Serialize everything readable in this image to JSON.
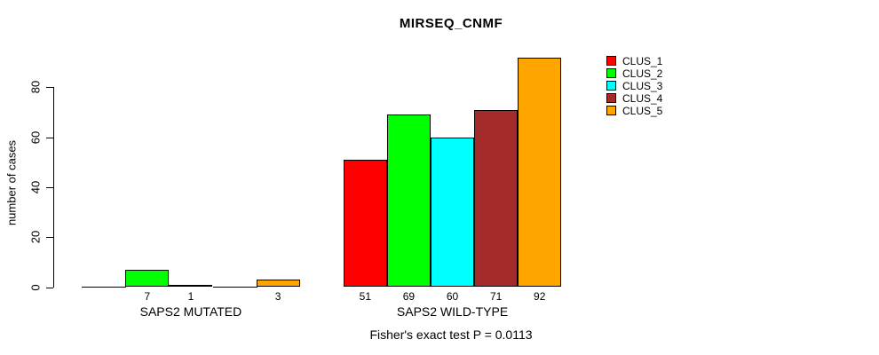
{
  "title": "MIRSEQ_CNMF",
  "chart_data": {
    "type": "bar",
    "title": "MIRSEQ_CNMF",
    "ylabel": "number of cases",
    "xlabel": "",
    "yticks": [
      0,
      20,
      40,
      60,
      80
    ],
    "ylim": [
      0,
      92
    ],
    "grid": false,
    "legend_position": "right-outside",
    "series": [
      {
        "name": "CLUS_1",
        "color": "#ff0000"
      },
      {
        "name": "CLUS_2",
        "color": "#00ff00"
      },
      {
        "name": "CLUS_3",
        "color": "#00ffff"
      },
      {
        "name": "CLUS_4",
        "color": "#a52a2a"
      },
      {
        "name": "CLUS_5",
        "color": "#ffa500"
      }
    ],
    "groups": [
      {
        "label": "SAPS2 MUTATED",
        "values": [
          0,
          7,
          1,
          0,
          3
        ],
        "bar_labels": [
          "",
          "7",
          "1",
          "",
          "3"
        ]
      },
      {
        "label": "SAPS2 WILD-TYPE",
        "values": [
          51,
          69,
          60,
          71,
          92
        ],
        "bar_labels": [
          "51",
          "69",
          "60",
          "71",
          "92"
        ]
      }
    ],
    "annotation": "Fisher's exact test P = 0.0113"
  }
}
